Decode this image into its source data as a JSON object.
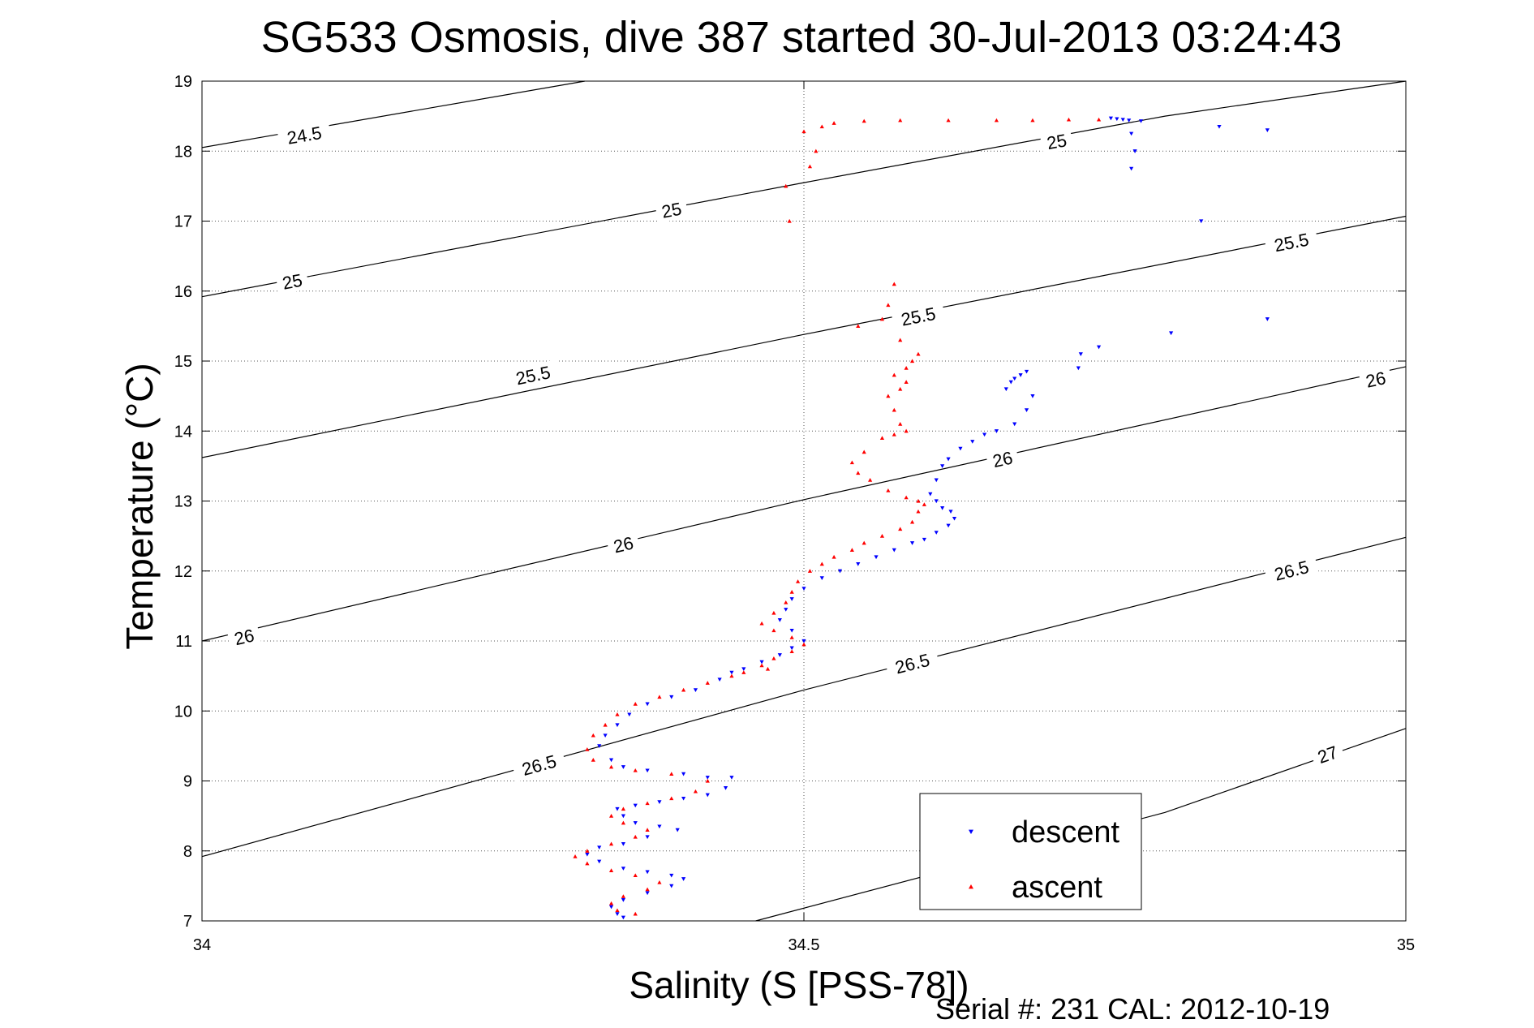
{
  "chart_data": {
    "type": "scatter",
    "title": "SG533 Osmosis, dive 387 started 30-Jul-2013 03:24:43",
    "xlabel": "Salinity (S [PSS-78])",
    "ylabel": "Temperature (°C)",
    "footer": "Serial #: 231  CAL: 2012-10-19",
    "xlim": [
      34,
      35
    ],
    "ylim": [
      7,
      19
    ],
    "xticks": [
      "34",
      "34.5",
      "35"
    ],
    "yticks": [
      "7",
      "8",
      "9",
      "10",
      "11",
      "12",
      "13",
      "14",
      "15",
      "16",
      "17",
      "18",
      "19"
    ],
    "grid": true,
    "legend_position": "bottom-right",
    "colors": {
      "descent": "#0000ff",
      "ascent": "#ff0000",
      "contour": "#000000"
    },
    "density_contours": [
      {
        "label": "24.5",
        "points": [
          [
            34.0,
            18.05
          ],
          [
            34.318,
            19.0
          ]
        ],
        "label_positions": [
          [
            34.085,
            18.23
          ]
        ]
      },
      {
        "label": "25",
        "points": [
          [
            34.0,
            15.92
          ],
          [
            34.5,
            17.55
          ],
          [
            34.8,
            18.5
          ],
          [
            35.0,
            19.0
          ]
        ],
        "label_positions": [
          [
            34.075,
            16.14
          ],
          [
            34.39,
            17.16
          ],
          [
            34.71,
            18.14
          ]
        ]
      },
      {
        "label": "25.5",
        "points": [
          [
            34.0,
            13.62
          ],
          [
            34.5,
            15.38
          ],
          [
            35.0,
            17.07
          ]
        ],
        "label_positions": [
          [
            34.275,
            14.8
          ],
          [
            34.595,
            15.64
          ],
          [
            34.905,
            16.7
          ]
        ]
      },
      {
        "label": "26",
        "points": [
          [
            34.0,
            11.0
          ],
          [
            34.5,
            13.02
          ],
          [
            35.0,
            14.92
          ]
        ],
        "label_positions": [
          [
            34.035,
            11.06
          ],
          [
            34.35,
            12.38
          ],
          [
            34.665,
            13.6
          ],
          [
            34.975,
            14.74
          ]
        ]
      },
      {
        "label": "26.5",
        "points": [
          [
            34.0,
            7.92
          ],
          [
            34.5,
            10.3
          ],
          [
            35.0,
            12.48
          ]
        ],
        "label_positions": [
          [
            34.28,
            9.23
          ],
          [
            34.59,
            10.68
          ],
          [
            34.905,
            12.01
          ]
        ]
      },
      {
        "label": "27",
        "points": [
          [
            34.46,
            7.0
          ],
          [
            34.8,
            8.55
          ],
          [
            35.0,
            9.75
          ]
        ],
        "label_positions": [
          [
            34.935,
            9.38
          ]
        ]
      }
    ],
    "series": [
      {
        "name": "descent",
        "marker": "triangle-down",
        "points": [
          [
            34.755,
            18.47
          ],
          [
            34.76,
            18.46
          ],
          [
            34.765,
            18.45
          ],
          [
            34.77,
            18.44
          ],
          [
            34.78,
            18.43
          ],
          [
            34.845,
            18.35
          ],
          [
            34.885,
            18.3
          ],
          [
            34.772,
            18.25
          ],
          [
            34.775,
            18.0
          ],
          [
            34.772,
            17.75
          ],
          [
            34.83,
            17.0
          ],
          [
            34.885,
            15.6
          ],
          [
            34.805,
            15.4
          ],
          [
            34.745,
            15.2
          ],
          [
            34.73,
            15.1
          ],
          [
            34.728,
            14.9
          ],
          [
            34.685,
            14.85
          ],
          [
            34.68,
            14.8
          ],
          [
            34.675,
            14.75
          ],
          [
            34.672,
            14.7
          ],
          [
            34.668,
            14.6
          ],
          [
            34.69,
            14.5
          ],
          [
            34.685,
            14.3
          ],
          [
            34.675,
            14.1
          ],
          [
            34.66,
            14.0
          ],
          [
            34.65,
            13.95
          ],
          [
            34.64,
            13.85
          ],
          [
            34.63,
            13.75
          ],
          [
            34.62,
            13.6
          ],
          [
            34.615,
            13.5
          ],
          [
            34.61,
            13.3
          ],
          [
            34.605,
            13.1
          ],
          [
            34.61,
            13.0
          ],
          [
            34.615,
            12.9
          ],
          [
            34.622,
            12.85
          ],
          [
            34.625,
            12.75
          ],
          [
            34.62,
            12.65
          ],
          [
            34.61,
            12.55
          ],
          [
            34.6,
            12.45
          ],
          [
            34.59,
            12.4
          ],
          [
            34.575,
            12.3
          ],
          [
            34.56,
            12.2
          ],
          [
            34.545,
            12.1
          ],
          [
            34.53,
            12.0
          ],
          [
            34.515,
            11.9
          ],
          [
            34.5,
            11.75
          ],
          [
            34.49,
            11.6
          ],
          [
            34.485,
            11.45
          ],
          [
            34.48,
            11.3
          ],
          [
            34.49,
            11.15
          ],
          [
            34.5,
            11.0
          ],
          [
            34.49,
            10.9
          ],
          [
            34.48,
            10.8
          ],
          [
            34.465,
            10.7
          ],
          [
            34.45,
            10.6
          ],
          [
            34.44,
            10.55
          ],
          [
            34.43,
            10.45
          ],
          [
            34.41,
            10.3
          ],
          [
            34.39,
            10.2
          ],
          [
            34.37,
            10.1
          ],
          [
            34.355,
            9.95
          ],
          [
            34.345,
            9.8
          ],
          [
            34.335,
            9.65
          ],
          [
            34.33,
            9.5
          ],
          [
            34.34,
            9.3
          ],
          [
            34.35,
            9.2
          ],
          [
            34.37,
            9.15
          ],
          [
            34.4,
            9.1
          ],
          [
            34.42,
            9.05
          ],
          [
            34.44,
            9.05
          ],
          [
            34.435,
            8.9
          ],
          [
            34.42,
            8.8
          ],
          [
            34.4,
            8.75
          ],
          [
            34.38,
            8.7
          ],
          [
            34.36,
            8.65
          ],
          [
            34.345,
            8.6
          ],
          [
            34.35,
            8.5
          ],
          [
            34.36,
            8.4
          ],
          [
            34.38,
            8.35
          ],
          [
            34.395,
            8.3
          ],
          [
            34.37,
            8.2
          ],
          [
            34.35,
            8.1
          ],
          [
            34.33,
            8.05
          ],
          [
            34.32,
            7.95
          ],
          [
            34.33,
            7.85
          ],
          [
            34.35,
            7.75
          ],
          [
            34.37,
            7.7
          ],
          [
            34.39,
            7.65
          ],
          [
            34.4,
            7.6
          ],
          [
            34.39,
            7.5
          ],
          [
            34.37,
            7.4
          ],
          [
            34.35,
            7.3
          ],
          [
            34.34,
            7.2
          ],
          [
            34.345,
            7.1
          ],
          [
            34.35,
            7.05
          ]
        ]
      },
      {
        "name": "ascent",
        "marker": "triangle-up",
        "points": [
          [
            34.745,
            18.45
          ],
          [
            34.72,
            18.45
          ],
          [
            34.69,
            18.44
          ],
          [
            34.66,
            18.44
          ],
          [
            34.62,
            18.44
          ],
          [
            34.58,
            18.44
          ],
          [
            34.55,
            18.43
          ],
          [
            34.525,
            18.4
          ],
          [
            34.515,
            18.35
          ],
          [
            34.5,
            18.28
          ],
          [
            34.51,
            18.0
          ],
          [
            34.505,
            17.78
          ],
          [
            34.485,
            17.5
          ],
          [
            34.488,
            17.0
          ],
          [
            34.575,
            16.1
          ],
          [
            34.57,
            15.8
          ],
          [
            34.565,
            15.6
          ],
          [
            34.545,
            15.5
          ],
          [
            34.58,
            15.3
          ],
          [
            34.595,
            15.1
          ],
          [
            34.59,
            15.0
          ],
          [
            34.585,
            14.9
          ],
          [
            34.575,
            14.8
          ],
          [
            34.585,
            14.7
          ],
          [
            34.58,
            14.6
          ],
          [
            34.57,
            14.5
          ],
          [
            34.575,
            14.3
          ],
          [
            34.58,
            14.1
          ],
          [
            34.585,
            14.0
          ],
          [
            34.575,
            13.95
          ],
          [
            34.565,
            13.9
          ],
          [
            34.55,
            13.7
          ],
          [
            34.54,
            13.55
          ],
          [
            34.545,
            13.4
          ],
          [
            34.555,
            13.3
          ],
          [
            34.57,
            13.15
          ],
          [
            34.585,
            13.05
          ],
          [
            34.595,
            13.0
          ],
          [
            34.6,
            12.95
          ],
          [
            34.595,
            12.85
          ],
          [
            34.59,
            12.7
          ],
          [
            34.58,
            12.6
          ],
          [
            34.565,
            12.5
          ],
          [
            34.55,
            12.4
          ],
          [
            34.54,
            12.3
          ],
          [
            34.525,
            12.2
          ],
          [
            34.515,
            12.1
          ],
          [
            34.505,
            12.0
          ],
          [
            34.495,
            11.85
          ],
          [
            34.49,
            11.7
          ],
          [
            34.485,
            11.55
          ],
          [
            34.475,
            11.4
          ],
          [
            34.465,
            11.25
          ],
          [
            34.475,
            11.15
          ],
          [
            34.49,
            11.05
          ],
          [
            34.5,
            10.95
          ],
          [
            34.49,
            10.85
          ],
          [
            34.475,
            10.75
          ],
          [
            34.465,
            10.65
          ],
          [
            34.47,
            10.6
          ],
          [
            34.45,
            10.55
          ],
          [
            34.44,
            10.5
          ],
          [
            34.42,
            10.4
          ],
          [
            34.4,
            10.3
          ],
          [
            34.38,
            10.2
          ],
          [
            34.36,
            10.1
          ],
          [
            34.345,
            9.95
          ],
          [
            34.335,
            9.8
          ],
          [
            34.325,
            9.65
          ],
          [
            34.32,
            9.45
          ],
          [
            34.325,
            9.3
          ],
          [
            34.34,
            9.2
          ],
          [
            34.36,
            9.15
          ],
          [
            34.39,
            9.1
          ],
          [
            34.42,
            9.0
          ],
          [
            34.41,
            8.85
          ],
          [
            34.39,
            8.75
          ],
          [
            34.37,
            8.68
          ],
          [
            34.35,
            8.6
          ],
          [
            34.34,
            8.5
          ],
          [
            34.35,
            8.4
          ],
          [
            34.37,
            8.3
          ],
          [
            34.36,
            8.2
          ],
          [
            34.34,
            8.1
          ],
          [
            34.32,
            8.0
          ],
          [
            34.31,
            7.92
          ],
          [
            34.32,
            7.82
          ],
          [
            34.34,
            7.72
          ],
          [
            34.36,
            7.65
          ],
          [
            34.38,
            7.55
          ],
          [
            34.37,
            7.45
          ],
          [
            34.35,
            7.35
          ],
          [
            34.34,
            7.25
          ],
          [
            34.345,
            7.15
          ],
          [
            34.36,
            7.1
          ]
        ]
      }
    ]
  }
}
